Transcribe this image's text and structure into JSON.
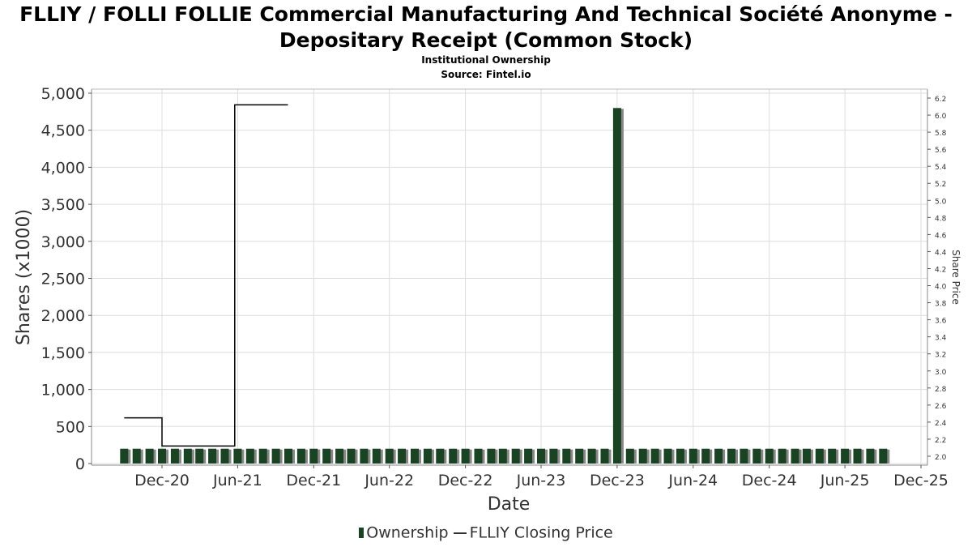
{
  "chart_data": {
    "type": "bar",
    "title": "FLLIY / FOLLI FOLLIE Commercial Manufacturing And Technical Société Anonyme - Depositary Receipt (Common Stock)",
    "subtitle": "Institutional Ownership",
    "source": "Source: Fintel.io",
    "xlabel": "Date",
    "ylabel": "Shares (x1000)",
    "y2label": "Share Price",
    "ylim": [
      0,
      5000
    ],
    "y2lim": [
      1.95,
      6.25
    ],
    "grid": true,
    "legend_placement": "bottom",
    "x_tick_labels": [
      "Dec-20",
      "Jun-21",
      "Dec-21",
      "Jun-22",
      "Dec-22",
      "Jun-23",
      "Dec-23",
      "Jun-24",
      "Dec-24",
      "Jun-25",
      "Dec-25"
    ],
    "y_tick_labels": [
      "0",
      "500",
      "1,000",
      "1,500",
      "2,000",
      "2,500",
      "3,000",
      "3,500",
      "4,000",
      "4,500",
      "5,000"
    ],
    "y2_tick_labels": [
      "2.0",
      "2.2",
      "2.4",
      "2.6",
      "2.8",
      "3.0",
      "3.2",
      "3.4",
      "3.6",
      "3.8",
      "4.0",
      "4.2",
      "4.4",
      "4.6",
      "4.8",
      "5.0",
      "5.2",
      "5.4",
      "5.6",
      "5.8",
      "6.0",
      "6.2"
    ],
    "series": [
      {
        "name": "Ownership",
        "type": "bar",
        "color": "#1a4323",
        "shadow_color": "#888888",
        "x": [
          "2020-09-01",
          "2020-10-01",
          "2020-11-01",
          "2020-12-01",
          "2021-01-01",
          "2021-02-01",
          "2021-03-01",
          "2021-04-01",
          "2021-05-01",
          "2021-06-01",
          "2021-07-01",
          "2021-08-01",
          "2021-09-01",
          "2021-10-01",
          "2021-11-01",
          "2021-12-01",
          "2022-01-01",
          "2022-02-01",
          "2022-03-01",
          "2022-04-01",
          "2022-05-01",
          "2022-06-01",
          "2022-07-01",
          "2022-08-01",
          "2022-09-01",
          "2022-10-01",
          "2022-11-01",
          "2022-12-01",
          "2023-01-01",
          "2023-02-01",
          "2023-03-01",
          "2023-04-01",
          "2023-05-01",
          "2023-06-01",
          "2023-07-01",
          "2023-08-01",
          "2023-09-01",
          "2023-10-01",
          "2023-11-01",
          "2023-12-01",
          "2024-01-01",
          "2024-02-01",
          "2024-03-01",
          "2024-04-01",
          "2024-05-01",
          "2024-06-01",
          "2024-07-01",
          "2024-08-01",
          "2024-09-01",
          "2024-10-01",
          "2024-11-01",
          "2024-12-01",
          "2025-01-01",
          "2025-02-01",
          "2025-03-01",
          "2025-04-01",
          "2025-05-01",
          "2025-06-01",
          "2025-07-01",
          "2025-08-01",
          "2025-09-01"
        ],
        "values": [
          200,
          200,
          200,
          200,
          200,
          200,
          200,
          200,
          200,
          200,
          200,
          200,
          200,
          200,
          200,
          200,
          200,
          200,
          200,
          200,
          200,
          200,
          200,
          200,
          200,
          200,
          200,
          200,
          200,
          200,
          200,
          200,
          200,
          200,
          200,
          200,
          200,
          200,
          200,
          4800,
          200,
          200,
          200,
          200,
          200,
          200,
          200,
          200,
          200,
          200,
          200,
          200,
          200,
          200,
          200,
          200,
          200,
          200,
          200,
          200,
          200
        ]
      },
      {
        "name": "FLLIY Closing Price",
        "type": "line",
        "axis": "right",
        "color": "#000000",
        "x": [
          "2020-09-01",
          "2020-12-01",
          "2020-12-01",
          "2021-05-25",
          "2021-05-25",
          "2021-09-30"
        ],
        "values": [
          2.45,
          2.45,
          2.12,
          2.12,
          6.12,
          6.12
        ]
      }
    ]
  },
  "legend": {
    "ownership_label": "Ownership",
    "price_label": "FLLIY Closing Price"
  }
}
